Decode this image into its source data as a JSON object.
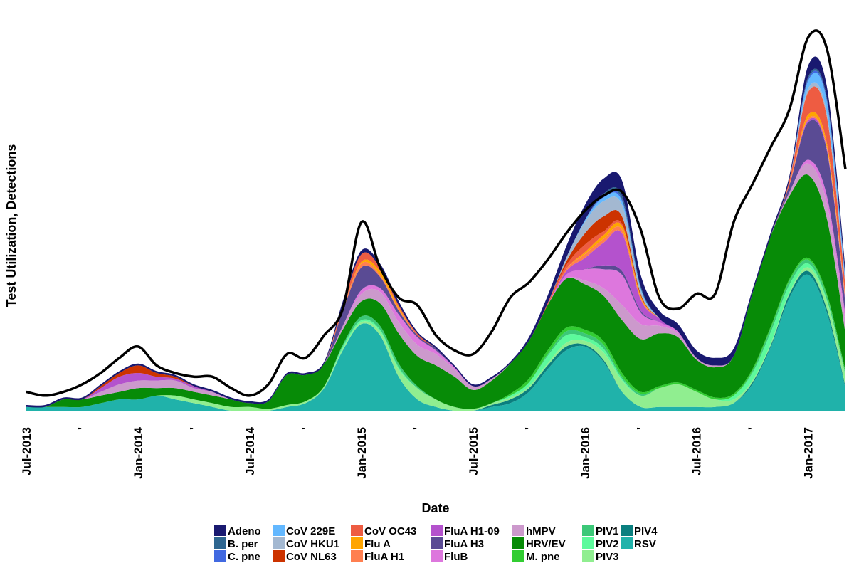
{
  "chart_data": {
    "type": "area",
    "stacked": true,
    "xlabel": "Date",
    "ylabel": "Test Utilization, Detections",
    "x": [
      "2013-07",
      "2013-08",
      "2013-09",
      "2013-10",
      "2013-11",
      "2013-12",
      "2014-01",
      "2014-02",
      "2014-03",
      "2014-04",
      "2014-05",
      "2014-06",
      "2014-07",
      "2014-08",
      "2014-09",
      "2014-10",
      "2014-11",
      "2014-12",
      "2015-01",
      "2015-02",
      "2015-03",
      "2015-04",
      "2015-05",
      "2015-06",
      "2015-07",
      "2015-08",
      "2015-09",
      "2015-10",
      "2015-11",
      "2015-12",
      "2016-01",
      "2016-02",
      "2016-03",
      "2016-04",
      "2016-05",
      "2016-06",
      "2016-07",
      "2016-08",
      "2016-09",
      "2016-10",
      "2016-11",
      "2016-12",
      "2017-01",
      "2017-02",
      "2017-03"
    ],
    "xticks": [
      {
        "date": "2013-07",
        "label": "Jul-2013"
      },
      {
        "date": "2013-10",
        "label": "'"
      },
      {
        "date": "2014-01",
        "label": "Jan-2014"
      },
      {
        "date": "2014-04",
        "label": "'"
      },
      {
        "date": "2014-07",
        "label": "Jul-2014"
      },
      {
        "date": "2014-10",
        "label": "'"
      },
      {
        "date": "2015-01",
        "label": "Jan-2015"
      },
      {
        "date": "2015-04",
        "label": "'"
      },
      {
        "date": "2015-07",
        "label": "Jul-2015"
      },
      {
        "date": "2015-10",
        "label": "'"
      },
      {
        "date": "2016-01",
        "label": "Jan-2016"
      },
      {
        "date": "2016-04",
        "label": "'"
      },
      {
        "date": "2016-07",
        "label": "Jul-2016"
      },
      {
        "date": "2016-10",
        "label": "'"
      },
      {
        "date": "2017-01",
        "label": "Jan-2017"
      }
    ],
    "ylim": [
      0,
      100
    ],
    "y_tick_labels_visible": false,
    "grid": false,
    "legend_position": "bottom",
    "series": [
      {
        "name": "RSV",
        "color": "#20b2aa",
        "values": [
          1,
          1,
          1,
          1,
          2,
          3,
          3,
          4,
          3,
          2,
          1,
          0,
          0,
          0,
          1,
          2,
          6,
          16,
          23,
          20,
          9,
          3,
          1,
          0,
          0,
          1,
          2,
          5,
          11,
          16,
          17,
          13,
          5,
          1,
          1,
          1,
          1,
          1,
          2,
          7,
          17,
          30,
          36,
          26,
          6
        ]
      },
      {
        "name": "PIV4",
        "color": "#0a7f7f",
        "values": [
          0,
          0,
          0,
          0,
          0,
          0,
          0,
          0,
          0,
          0,
          0,
          0,
          0,
          0,
          0,
          0,
          0,
          0,
          0,
          0,
          0,
          0,
          0,
          0,
          0,
          0.5,
          1,
          1,
          1,
          1,
          0.5,
          0.5,
          0,
          0,
          0,
          0,
          0,
          0,
          0,
          0.5,
          0.5,
          1,
          1,
          1,
          0.5
        ]
      },
      {
        "name": "PIV3",
        "color": "#90ee90",
        "values": [
          0,
          0,
          0,
          0,
          0,
          0,
          0,
          0,
          1,
          1,
          1,
          1,
          1,
          0.5,
          0.5,
          0.5,
          0.5,
          0.5,
          0.5,
          1,
          2,
          3,
          2,
          1,
          0.5,
          0.5,
          0.5,
          0.5,
          0.5,
          1,
          1,
          2,
          3,
          3,
          5,
          6,
          4,
          2,
          1,
          0.5,
          0.5,
          0.5,
          1,
          2,
          3
        ]
      },
      {
        "name": "PIV2",
        "color": "#5cfa9c",
        "values": [
          0,
          0,
          0,
          0,
          0,
          0,
          0,
          0,
          0,
          0,
          0,
          0,
          0,
          0,
          0,
          0,
          0,
          0.5,
          0.5,
          0.5,
          0.5,
          0,
          0,
          0,
          0,
          0,
          0.5,
          1,
          2,
          2,
          1,
          1,
          0.5,
          0,
          0,
          0,
          0,
          0,
          1,
          2,
          3,
          2,
          1,
          0.5,
          0
        ]
      },
      {
        "name": "PIV1",
        "color": "#3cc878",
        "values": [
          0,
          0,
          0,
          0,
          0,
          0,
          0,
          0,
          0,
          0,
          0,
          0,
          0,
          0,
          0,
          0,
          0,
          0.5,
          1,
          1,
          1,
          0.5,
          0,
          0,
          0,
          0,
          0,
          0,
          0.5,
          1,
          1,
          1,
          0.5,
          0.5,
          0,
          0,
          0,
          0,
          0,
          0.5,
          1,
          1,
          1,
          1,
          0.5
        ]
      },
      {
        "name": "M. pne",
        "color": "#32cd32",
        "values": [
          0,
          0,
          0,
          0,
          0,
          0,
          0,
          0,
          0,
          0,
          0,
          0,
          0,
          0,
          0,
          0,
          0,
          0,
          0,
          0,
          0,
          0,
          0,
          0,
          0,
          0,
          0.5,
          1,
          1,
          1,
          1,
          1,
          1,
          0.5,
          0.5,
          0.5,
          0.5,
          0.5,
          0.5,
          0.5,
          0.5,
          0.5,
          0.5,
          0.5,
          0.5
        ]
      },
      {
        "name": "HRV/EV",
        "color": "#078b07",
        "values": [
          0,
          0,
          2,
          2,
          2,
          2,
          3,
          2,
          2,
          2,
          2,
          2,
          1,
          2,
          8,
          7,
          6,
          4,
          4,
          6,
          8,
          8,
          9,
          8,
          5,
          6,
          8,
          10,
          12,
          13,
          12,
          12,
          14,
          14,
          14,
          12,
          8,
          8,
          10,
          20,
          24,
          22,
          22,
          20,
          10
        ]
      },
      {
        "name": "hMPV",
        "color": "#cc99cc",
        "values": [
          0,
          0,
          0,
          0,
          1,
          2,
          2,
          2,
          2,
          1,
          1,
          0,
          0,
          0,
          0,
          0,
          0,
          1,
          2,
          3,
          3,
          3,
          3,
          2,
          1,
          0.5,
          0,
          0,
          0,
          0,
          1,
          2,
          4,
          4,
          2,
          1,
          0.5,
          0.5,
          0,
          0,
          0,
          1,
          3,
          4,
          3
        ]
      },
      {
        "name": "FluB",
        "color": "#dd77dd",
        "values": [
          0,
          0,
          0,
          0,
          0,
          0,
          0,
          0,
          0,
          0,
          0,
          0,
          0,
          0,
          0,
          0,
          0,
          0,
          1,
          1,
          2,
          2,
          1,
          0.5,
          0,
          0,
          0,
          0,
          0,
          1,
          3,
          5,
          8,
          3,
          1,
          0.5,
          0,
          0,
          0,
          0,
          0,
          0,
          1,
          2,
          2
        ]
      },
      {
        "name": "FluA H3",
        "color": "#5a4b94",
        "values": [
          0,
          0,
          0,
          0,
          0,
          0,
          0,
          0,
          0,
          0,
          0,
          0,
          0,
          0,
          0,
          0,
          0,
          4,
          6,
          3,
          1,
          0.5,
          0.5,
          0,
          0,
          0,
          0,
          0,
          0,
          0,
          0,
          1,
          1,
          0.5,
          0,
          0,
          0,
          0,
          0,
          0,
          0,
          2,
          10,
          12,
          3
        ]
      },
      {
        "name": "FluA H1-09",
        "color": "#b452cd",
        "values": [
          0,
          0,
          0,
          0,
          1,
          2,
          2,
          1,
          0.5,
          0.5,
          0,
          0,
          0,
          0,
          0,
          0,
          0,
          0,
          0,
          0,
          0,
          0,
          0,
          0,
          0,
          0,
          0,
          0,
          0,
          1,
          3,
          6,
          10,
          3,
          1,
          0,
          0,
          0,
          0,
          0,
          0,
          0,
          0.5,
          0.5,
          0.5
        ]
      },
      {
        "name": "FluA H1",
        "color": "#ff7f50",
        "values": [
          0,
          0,
          0,
          0,
          0,
          0,
          0,
          0,
          0,
          0,
          0,
          0,
          0,
          0,
          0,
          0,
          0,
          0.5,
          1,
          0.5,
          0.5,
          0,
          0,
          0,
          0,
          0,
          0,
          0,
          0,
          0.5,
          1,
          1,
          1,
          0.5,
          0,
          0,
          0,
          0,
          0,
          0,
          0,
          0.5,
          0.5,
          0.5,
          0.5
        ]
      },
      {
        "name": "Flu A",
        "color": "#ffa500",
        "values": [
          0,
          0,
          0,
          0,
          0,
          0,
          0,
          0,
          0,
          0,
          0,
          0,
          0,
          0,
          0,
          0,
          0,
          0,
          0.5,
          1,
          0.5,
          0,
          0,
          0,
          0,
          0,
          0,
          0,
          0,
          0,
          0.5,
          1,
          1,
          0.5,
          0,
          0,
          0,
          0,
          0,
          0,
          0,
          0,
          1,
          1,
          0.5
        ]
      },
      {
        "name": "CoV OC43",
        "color": "#ee5c42",
        "values": [
          0,
          0,
          0,
          0,
          0,
          0,
          0,
          0,
          0,
          0,
          0,
          0,
          0,
          0,
          0,
          0,
          0,
          1,
          2,
          1,
          0.5,
          0.5,
          0,
          0,
          0,
          0,
          0,
          0,
          0.5,
          1,
          2,
          1,
          0.5,
          0,
          0,
          0,
          0,
          0,
          0,
          0,
          0,
          1,
          6,
          7,
          3
        ]
      },
      {
        "name": "CoV NL63",
        "color": "#cc3300",
        "values": [
          0,
          0,
          0,
          0,
          0.5,
          1,
          2,
          1,
          0.5,
          0,
          0,
          0,
          0,
          0,
          0,
          0,
          0,
          0,
          0,
          0,
          0,
          0,
          0,
          0,
          0,
          0,
          0,
          0,
          0,
          1,
          3,
          4,
          2,
          0.5,
          0,
          0,
          0,
          0,
          0,
          0,
          0,
          0,
          0,
          0,
          0
        ]
      },
      {
        "name": "CoV HKU1",
        "color": "#a3b8d1",
        "values": [
          0,
          0,
          0,
          0,
          0,
          0,
          0,
          0,
          0,
          0,
          0,
          0,
          0,
          0,
          0,
          0,
          0,
          0,
          0,
          0,
          0,
          0,
          0,
          0,
          0,
          0,
          0,
          0,
          0,
          1,
          3,
          4,
          3,
          1,
          0,
          0,
          0,
          0,
          0,
          0,
          0,
          0,
          1,
          1,
          0.5
        ]
      },
      {
        "name": "CoV 229E",
        "color": "#63b8ff",
        "values": [
          0,
          0,
          0,
          0,
          0,
          0,
          0,
          0,
          0,
          0,
          0,
          0,
          0,
          0,
          0,
          0,
          0,
          0,
          0,
          0,
          0,
          0,
          0,
          0,
          0,
          0,
          0,
          0,
          0,
          0,
          0.5,
          1,
          1,
          0.5,
          0,
          0,
          0,
          0,
          0,
          0,
          0,
          0,
          2,
          3,
          1
        ]
      },
      {
        "name": "C. pne",
        "color": "#4169e1",
        "values": [
          0,
          0,
          0,
          0,
          0,
          0,
          0,
          0,
          0,
          0,
          0,
          0,
          0,
          0,
          0,
          0,
          0,
          0,
          0,
          0,
          0,
          0,
          0,
          0,
          0,
          0,
          0,
          0,
          0,
          0,
          0,
          0.5,
          0.5,
          0,
          0,
          0,
          0,
          0,
          0,
          0,
          0,
          0,
          0.5,
          0.5,
          0.5
        ]
      },
      {
        "name": "B. per",
        "color": "#2e6690",
        "values": [
          0,
          0,
          0,
          0,
          0,
          0,
          0,
          0,
          0,
          0,
          0,
          0,
          0,
          0,
          0,
          0,
          0,
          0,
          0,
          0,
          0,
          0,
          0,
          0,
          0,
          0,
          0,
          0,
          0,
          0,
          0,
          0.5,
          1,
          0.5,
          0,
          0,
          0,
          0,
          0,
          0,
          0,
          0,
          0.5,
          0.5,
          0.5
        ]
      },
      {
        "name": "Adeno",
        "color": "#191970",
        "values": [
          0.5,
          0.5,
          0.5,
          0.5,
          0.5,
          0.5,
          0.5,
          0.5,
          0.5,
          0.5,
          0.5,
          0.5,
          0.5,
          0.5,
          0.5,
          0.5,
          0.5,
          1,
          1,
          1,
          1,
          0.5,
          0.5,
          0.5,
          0.5,
          0.5,
          0.5,
          1,
          2,
          3,
          4,
          4,
          4,
          3,
          2,
          2,
          2,
          2,
          2,
          1,
          1,
          1,
          3,
          3,
          2
        ]
      }
    ],
    "total_tests": {
      "name": "Test Utilization",
      "color": "#000000",
      "values": [
        5,
        4,
        5,
        7,
        10,
        14,
        17,
        12,
        10,
        9,
        9,
        6,
        4,
        7,
        15,
        14,
        20,
        27,
        50,
        38,
        30,
        28,
        20,
        16,
        15,
        21,
        30,
        34,
        40,
        47,
        53,
        57,
        58,
        48,
        30,
        27,
        31,
        31,
        50,
        60,
        70,
        80,
        99,
        96,
        64
      ]
    }
  }
}
